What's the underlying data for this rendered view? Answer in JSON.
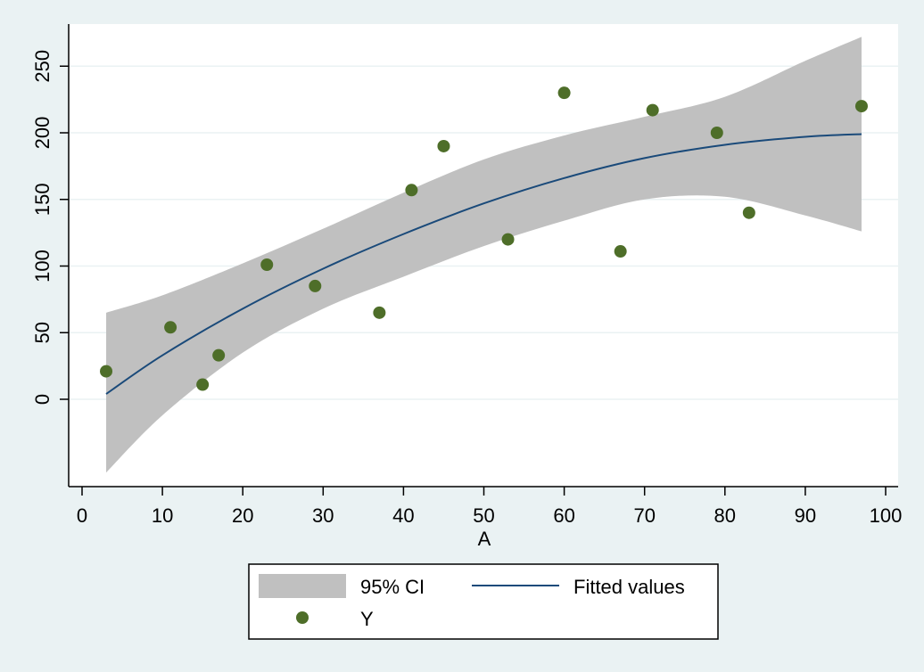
{
  "chart_data": {
    "type": "scatter",
    "title": "",
    "xlabel": "A",
    "ylabel": "",
    "xlim": [
      0,
      100
    ],
    "ylim": [
      -55,
      270
    ],
    "xticks": [
      0,
      10,
      20,
      30,
      40,
      50,
      60,
      70,
      80,
      90,
      100
    ],
    "yticks": [
      0,
      50,
      100,
      150,
      200,
      250
    ],
    "grid": "horizontal",
    "legend_position": "bottom",
    "colors": {
      "background": "#eaf2f3",
      "plot_background": "#ffffff",
      "ci_band": "#c0c0c0",
      "fit_line": "#1a4a7a",
      "points": "#4e6e29",
      "gridline": "#eaf2f3"
    },
    "series": [
      {
        "name": "Y",
        "kind": "scatter",
        "x": [
          3,
          11,
          15,
          17,
          23,
          29,
          37,
          41,
          45,
          53,
          60,
          67,
          71,
          79,
          83,
          97
        ],
        "y": [
          21,
          54,
          11,
          33,
          101,
          85,
          65,
          157,
          190,
          120,
          230,
          111,
          217,
          200,
          140,
          220
        ]
      },
      {
        "name": "Fitted values",
        "kind": "line",
        "x": [
          3,
          10,
          20,
          30,
          40,
          50,
          60,
          70,
          80,
          90,
          97
        ],
        "y": [
          4,
          33,
          68,
          98,
          124,
          147,
          166,
          181,
          191,
          197,
          199
        ]
      },
      {
        "name": "95% CI",
        "kind": "band",
        "x": [
          3,
          10,
          20,
          30,
          40,
          50,
          60,
          70,
          80,
          90,
          97
        ],
        "lower": [
          -55,
          -12,
          35,
          68,
          92,
          115,
          134,
          150,
          152,
          138,
          126
        ],
        "upper": [
          65,
          78,
          102,
          128,
          155,
          180,
          198,
          212,
          227,
          254,
          272
        ]
      }
    ],
    "legend": [
      "95% CI",
      "Fitted values",
      "Y"
    ]
  }
}
